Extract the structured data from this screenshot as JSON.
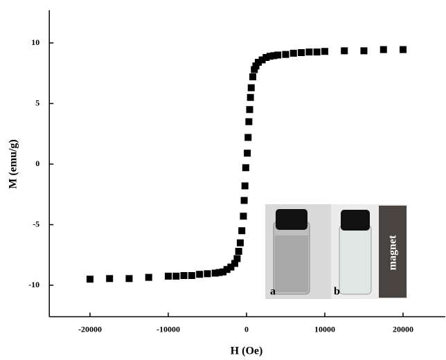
{
  "chart_data": {
    "type": "scatter",
    "x_label": "H (Oe)",
    "y_label": "M (emu/g)",
    "x": [
      -20000,
      -17500,
      -15000,
      -12500,
      -10000,
      -9000,
      -8000,
      -7000,
      -6000,
      -5000,
      -4000,
      -3500,
      -3000,
      -2500,
      -2000,
      -1500,
      -1200,
      -1000,
      -800,
      -600,
      -400,
      -300,
      -200,
      -100,
      100,
      200,
      300,
      400,
      500,
      600,
      800,
      1000,
      1200,
      1500,
      2000,
      2500,
      3000,
      3500,
      4000,
      5000,
      6000,
      7000,
      8000,
      9000,
      10000,
      12500,
      15000,
      17500,
      20000
    ],
    "values": [
      -9.5,
      -9.45,
      -9.45,
      -9.35,
      -9.25,
      -9.25,
      -9.2,
      -9.2,
      -9.1,
      -9.05,
      -9.0,
      -8.95,
      -8.9,
      -8.7,
      -8.5,
      -8.2,
      -7.8,
      -7.2,
      -6.5,
      -5.5,
      -4.3,
      -3.0,
      -1.8,
      -0.3,
      0.9,
      2.2,
      3.5,
      4.5,
      5.5,
      6.3,
      7.2,
      7.8,
      8.1,
      8.4,
      8.6,
      8.8,
      8.9,
      8.95,
      9.0,
      9.05,
      9.15,
      9.2,
      9.25,
      9.25,
      9.3,
      9.35,
      9.35,
      9.45,
      9.45
    ],
    "color": "#000000",
    "xlim": [
      -25200,
      25400
    ],
    "xticks": [
      -20000,
      -10000,
      0,
      10000,
      20000
    ],
    "ylim": [
      -12.6,
      12.7
    ],
    "yticks": [
      -10,
      -5,
      0,
      5,
      10
    ],
    "annotations": [
      "a",
      "b",
      "magnet"
    ]
  }
}
